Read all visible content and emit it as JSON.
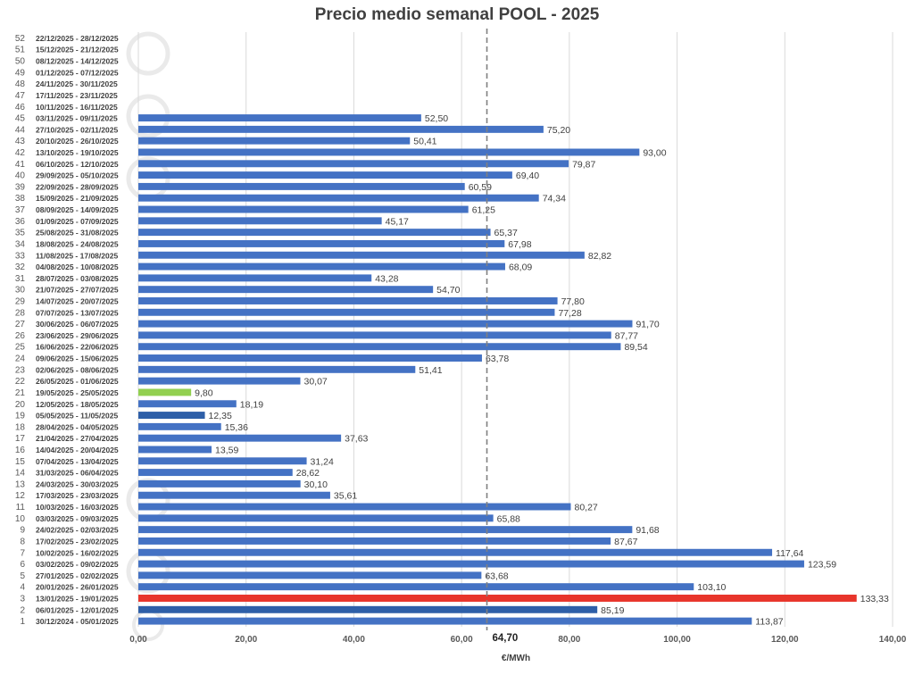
{
  "chart_data": {
    "type": "bar",
    "orientation": "horizontal",
    "title": "Precio medio semanal POOL - 2025",
    "xlabel": "€/MWh",
    "xlim": [
      0,
      140
    ],
    "x_ticks": [
      "0,00",
      "20,00",
      "40,00",
      "60,00",
      "80,00",
      "100,00",
      "120,00",
      "140,00"
    ],
    "grid": "vertical",
    "reference_line": {
      "value": 64.7,
      "label": "64,70",
      "style": "dashed"
    },
    "colors": {
      "default": "#4472c4",
      "max": "#e8352b",
      "min": "#92d050",
      "highlight": "#2e5fa8",
      "average_line": "#808080"
    },
    "weeks": [
      {
        "num": "1",
        "range": "30/12/2024 - 05/01/2025",
        "value": 113.87,
        "label": "113,87",
        "color": "#4472c4"
      },
      {
        "num": "2",
        "range": "06/01/2025 - 12/01/2025",
        "value": 85.19,
        "label": "85,19",
        "color": "#2e5fa8"
      },
      {
        "num": "3",
        "range": "13/01/2025 - 19/01/2025",
        "value": 133.33,
        "label": "133,33",
        "color": "#e8352b"
      },
      {
        "num": "4",
        "range": "20/01/2025 - 26/01/2025",
        "value": 103.1,
        "label": "103,10",
        "color": "#4472c4"
      },
      {
        "num": "5",
        "range": "27/01/2025 - 02/02/2025",
        "value": 63.68,
        "label": "63,68",
        "color": "#4472c4"
      },
      {
        "num": "6",
        "range": "03/02/2025 - 09/02/2025",
        "value": 123.59,
        "label": "123,59",
        "color": "#4472c4"
      },
      {
        "num": "7",
        "range": "10/02/2025 - 16/02/2025",
        "value": 117.64,
        "label": "117,64",
        "color": "#4472c4"
      },
      {
        "num": "8",
        "range": "17/02/2025 - 23/02/2025",
        "value": 87.67,
        "label": "87,67",
        "color": "#4472c4"
      },
      {
        "num": "9",
        "range": "24/02/2025 - 02/03/2025",
        "value": 91.68,
        "label": "91,68",
        "color": "#4472c4"
      },
      {
        "num": "10",
        "range": "03/03/2025 - 09/03/2025",
        "value": 65.88,
        "label": "65,88",
        "color": "#4472c4"
      },
      {
        "num": "11",
        "range": "10/03/2025 - 16/03/2025",
        "value": 80.27,
        "label": "80,27",
        "color": "#4472c4"
      },
      {
        "num": "12",
        "range": "17/03/2025 - 23/03/2025",
        "value": 35.61,
        "label": "35,61",
        "color": "#4472c4"
      },
      {
        "num": "13",
        "range": "24/03/2025 - 30/03/2025",
        "value": 30.1,
        "label": "30,10",
        "color": "#4472c4"
      },
      {
        "num": "14",
        "range": "31/03/2025 - 06/04/2025",
        "value": 28.62,
        "label": "28,62",
        "color": "#4472c4"
      },
      {
        "num": "15",
        "range": "07/04/2025 - 13/04/2025",
        "value": 31.24,
        "label": "31,24",
        "color": "#4472c4"
      },
      {
        "num": "16",
        "range": "14/04/2025 - 20/04/2025",
        "value": 13.59,
        "label": "13,59",
        "color": "#4472c4"
      },
      {
        "num": "17",
        "range": "21/04/2025 - 27/04/2025",
        "value": 37.63,
        "label": "37,63",
        "color": "#4472c4"
      },
      {
        "num": "18",
        "range": "28/04/2025 - 04/05/2025",
        "value": 15.36,
        "label": "15,36",
        "color": "#4472c4"
      },
      {
        "num": "19",
        "range": "05/05/2025 - 11/05/2025",
        "value": 12.35,
        "label": "12,35",
        "color": "#2e5fa8"
      },
      {
        "num": "20",
        "range": "12/05/2025 - 18/05/2025",
        "value": 18.19,
        "label": "18,19",
        "color": "#4472c4"
      },
      {
        "num": "21",
        "range": "19/05/2025 - 25/05/2025",
        "value": 9.8,
        "label": "9,80",
        "color": "#92d050"
      },
      {
        "num": "22",
        "range": "26/05/2025 - 01/06/2025",
        "value": 30.07,
        "label": "30,07",
        "color": "#4472c4"
      },
      {
        "num": "23",
        "range": "02/06/2025 - 08/06/2025",
        "value": 51.41,
        "label": "51,41",
        "color": "#4472c4"
      },
      {
        "num": "24",
        "range": "09/06/2025 - 15/06/2025",
        "value": 63.78,
        "label": "63,78",
        "color": "#4472c4"
      },
      {
        "num": "25",
        "range": "16/06/2025 - 22/06/2025",
        "value": 89.54,
        "label": "89,54",
        "color": "#4472c4"
      },
      {
        "num": "26",
        "range": "23/06/2025 - 29/06/2025",
        "value": 87.77,
        "label": "87,77",
        "color": "#4472c4"
      },
      {
        "num": "27",
        "range": "30/06/2025 - 06/07/2025",
        "value": 91.7,
        "label": "91,70",
        "color": "#4472c4"
      },
      {
        "num": "28",
        "range": "07/07/2025 - 13/07/2025",
        "value": 77.28,
        "label": "77,28",
        "color": "#4472c4"
      },
      {
        "num": "29",
        "range": "14/07/2025 - 20/07/2025",
        "value": 77.8,
        "label": "77,80",
        "color": "#4472c4"
      },
      {
        "num": "30",
        "range": "21/07/2025 - 27/07/2025",
        "value": 54.7,
        "label": "54,70",
        "color": "#4472c4"
      },
      {
        "num": "31",
        "range": "28/07/2025 - 03/08/2025",
        "value": 43.28,
        "label": "43,28",
        "color": "#4472c4"
      },
      {
        "num": "32",
        "range": "04/08/2025 - 10/08/2025",
        "value": 68.09,
        "label": "68,09",
        "color": "#4472c4"
      },
      {
        "num": "33",
        "range": "11/08/2025 - 17/08/2025",
        "value": 82.82,
        "label": "82,82",
        "color": "#4472c4"
      },
      {
        "num": "34",
        "range": "18/08/2025 - 24/08/2025",
        "value": 67.98,
        "label": "67,98",
        "color": "#4472c4"
      },
      {
        "num": "35",
        "range": "25/08/2025 - 31/08/2025",
        "value": 65.37,
        "label": "65,37",
        "color": "#4472c4"
      },
      {
        "num": "36",
        "range": "01/09/2025 - 07/09/2025",
        "value": 45.17,
        "label": "45,17",
        "color": "#4472c4"
      },
      {
        "num": "37",
        "range": "08/09/2025 - 14/09/2025",
        "value": 61.25,
        "label": "61,25",
        "color": "#4472c4"
      },
      {
        "num": "38",
        "range": "15/09/2025 - 21/09/2025",
        "value": 74.34,
        "label": "74,34",
        "color": "#4472c4"
      },
      {
        "num": "39",
        "range": "22/09/2025 - 28/09/2025",
        "value": 60.59,
        "label": "60,59",
        "color": "#4472c4"
      },
      {
        "num": "40",
        "range": "29/09/2025 - 05/10/2025",
        "value": 69.4,
        "label": "69,40",
        "color": "#4472c4"
      },
      {
        "num": "41",
        "range": "06/10/2025 - 12/10/2025",
        "value": 79.87,
        "label": "79,87",
        "color": "#4472c4"
      },
      {
        "num": "42",
        "range": "13/10/2025 - 19/10/2025",
        "value": 93.0,
        "label": "93,00",
        "color": "#4472c4"
      },
      {
        "num": "43",
        "range": "20/10/2025 - 26/10/2025",
        "value": 50.41,
        "label": "50,41",
        "color": "#4472c4"
      },
      {
        "num": "44",
        "range": "27/10/2025 - 02/11/2025",
        "value": 75.2,
        "label": "75,20",
        "color": "#4472c4"
      },
      {
        "num": "45",
        "range": "03/11/2025 - 09/11/2025",
        "value": 52.5,
        "label": "52,50",
        "color": "#4472c4"
      },
      {
        "num": "46",
        "range": "10/11/2025 - 16/11/2025",
        "value": null,
        "label": "",
        "color": "#4472c4"
      },
      {
        "num": "47",
        "range": "17/11/2025 - 23/11/2025",
        "value": null,
        "label": "",
        "color": "#4472c4"
      },
      {
        "num": "48",
        "range": "24/11/2025 - 30/11/2025",
        "value": null,
        "label": "",
        "color": "#4472c4"
      },
      {
        "num": "49",
        "range": "01/12/2025 - 07/12/2025",
        "value": null,
        "label": "",
        "color": "#4472c4"
      },
      {
        "num": "50",
        "range": "08/12/2025 - 14/12/2025",
        "value": null,
        "label": "",
        "color": "#4472c4"
      },
      {
        "num": "51",
        "range": "15/12/2025 - 21/12/2025",
        "value": null,
        "label": "",
        "color": "#4472c4"
      },
      {
        "num": "52",
        "range": "22/12/2025 - 28/12/2025",
        "value": null,
        "label": "",
        "color": "#4472c4"
      }
    ]
  }
}
